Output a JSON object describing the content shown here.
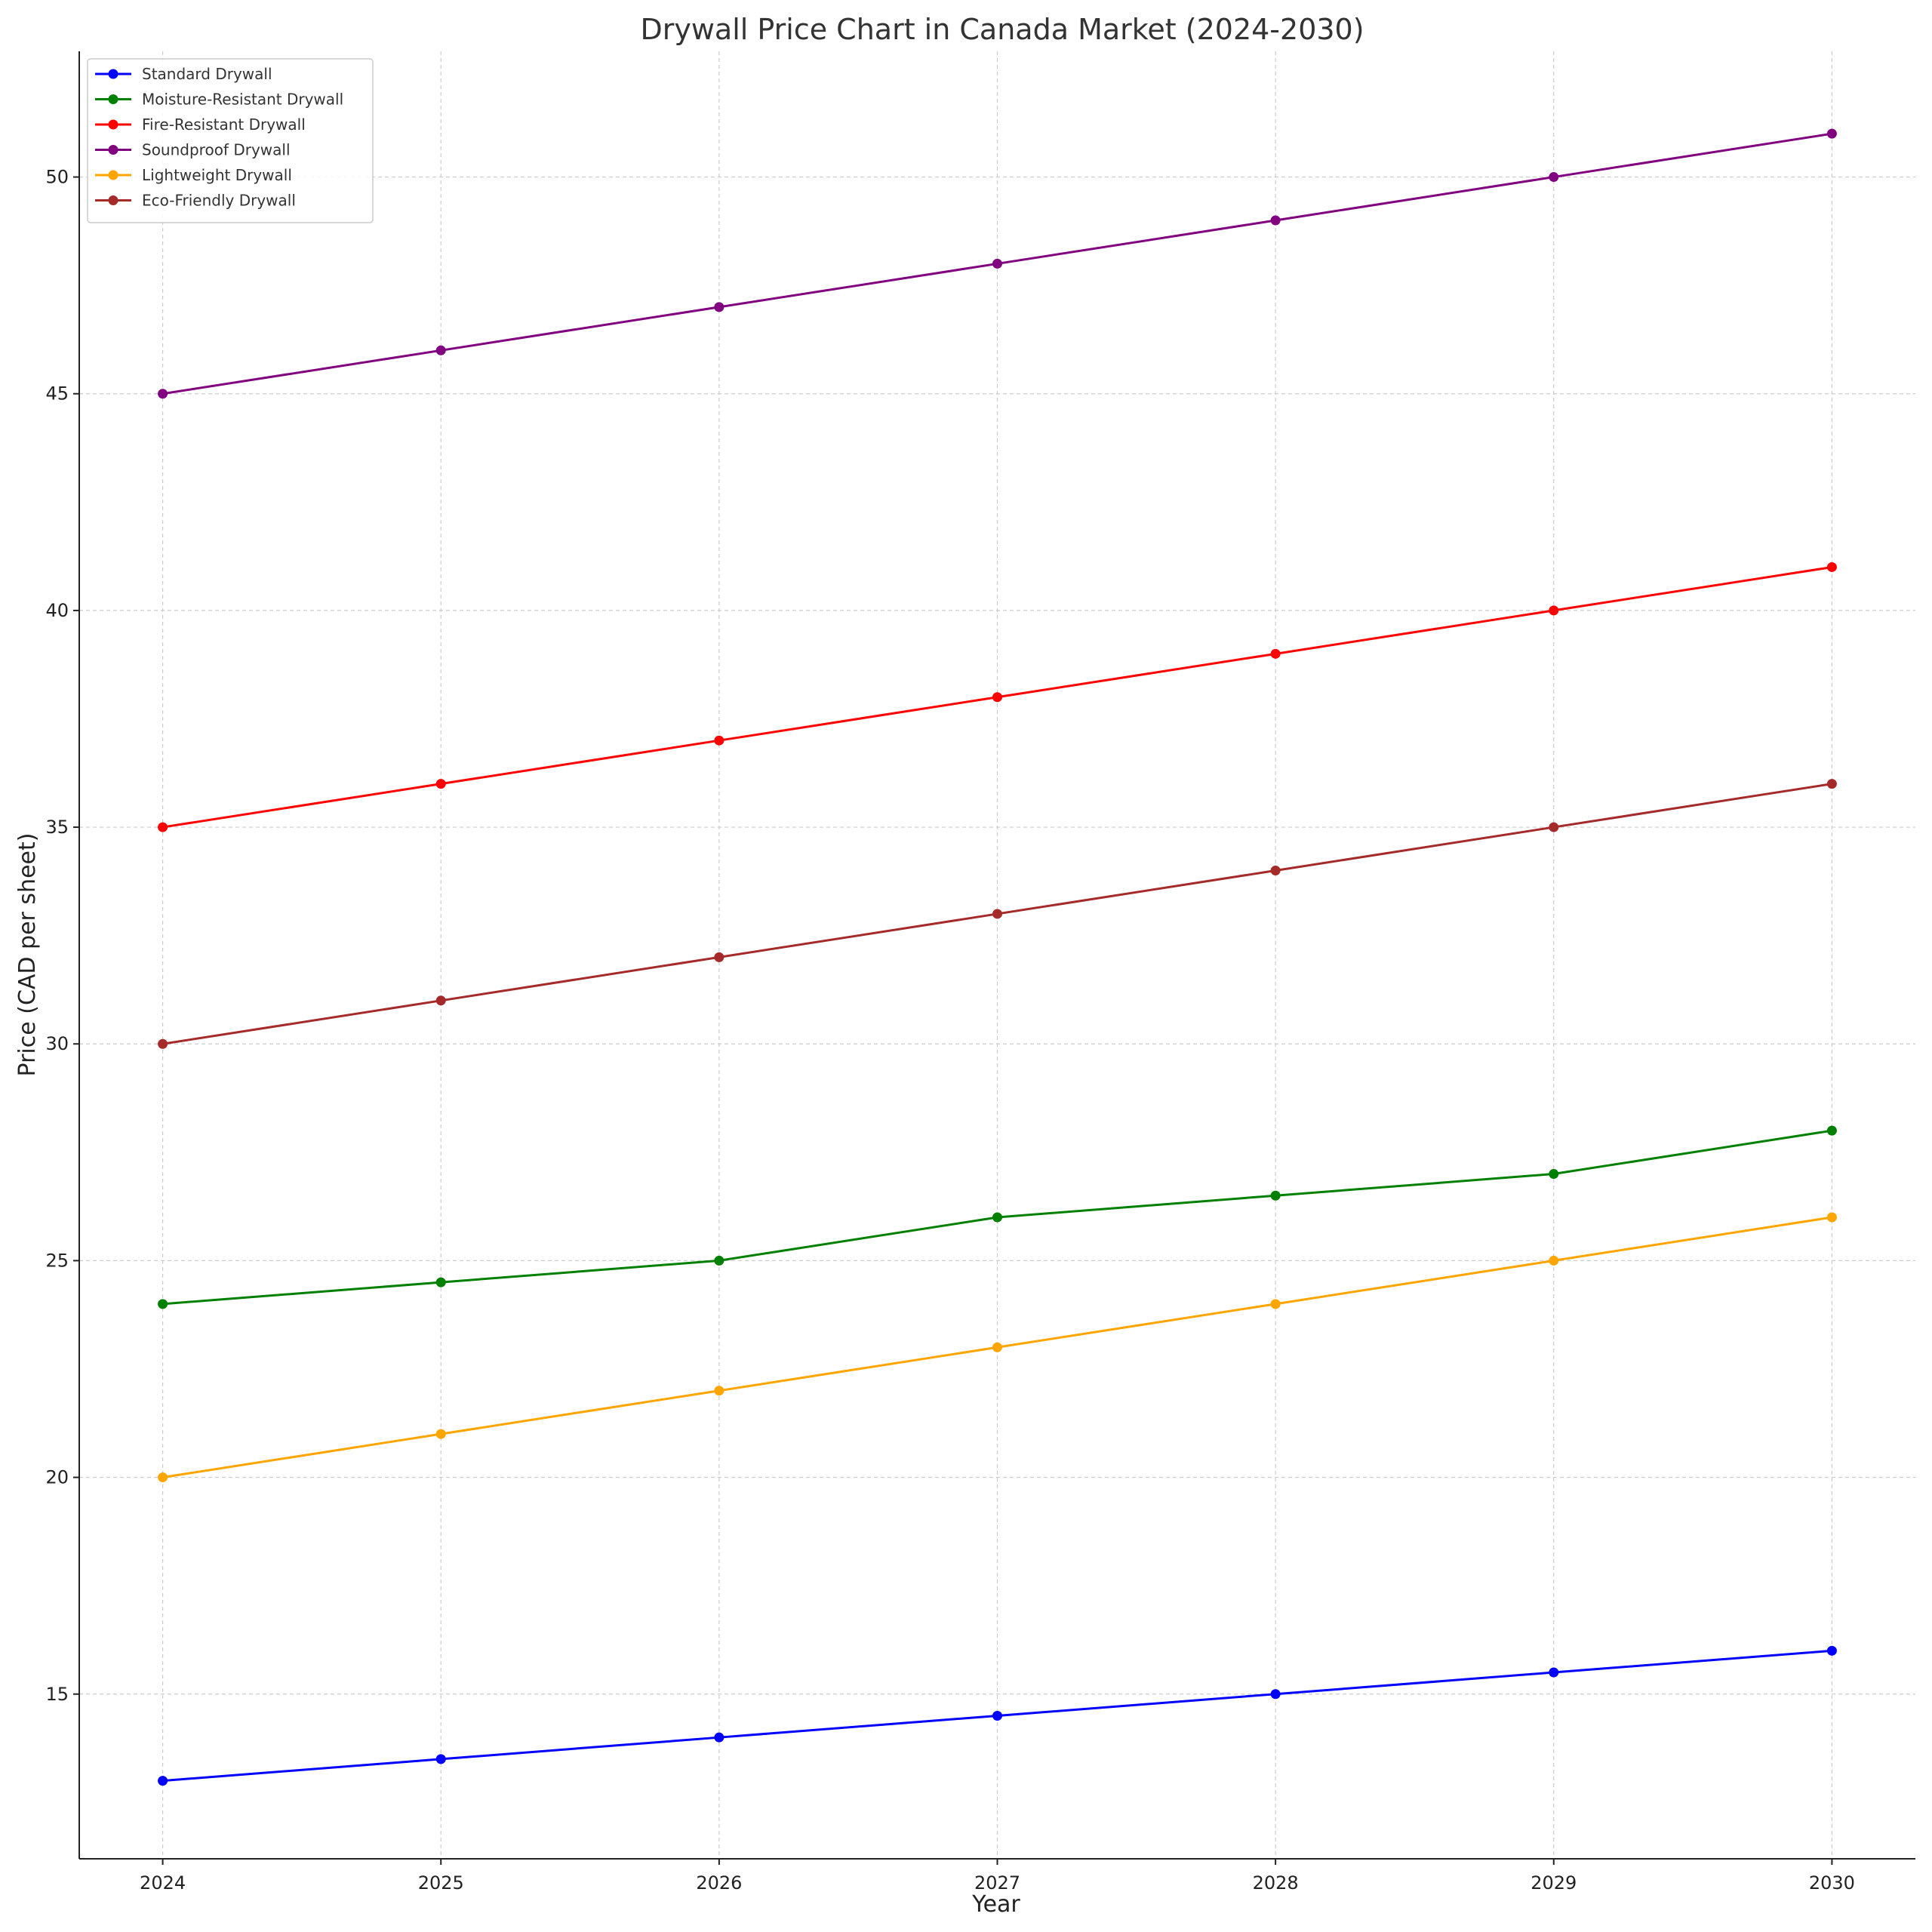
{
  "chart_data": {
    "type": "line",
    "title": "Drywall Price Chart in Canada Market (2024-2030)",
    "xlabel": "Year",
    "ylabel": "Price (CAD per sheet)",
    "x": [
      2024,
      2025,
      2026,
      2027,
      2028,
      2029,
      2030
    ],
    "xlim": [
      2023.7,
      2030.3
    ],
    "ylim": [
      11.2,
      52.9
    ],
    "yticks": [
      15,
      20,
      25,
      30,
      35,
      40,
      45,
      50
    ],
    "grid": true,
    "legend_position": "top-left",
    "series": [
      {
        "name": "Standard Drywall",
        "color": "#0000ff",
        "values": [
          13.0,
          13.5,
          14.0,
          14.5,
          15.0,
          15.5,
          16.0
        ]
      },
      {
        "name": "Moisture-Resistant Drywall",
        "color": "#008000",
        "values": [
          24.0,
          24.5,
          25.0,
          26.0,
          26.5,
          27.0,
          28.0
        ]
      },
      {
        "name": "Fire-Resistant Drywall",
        "color": "#ff0000",
        "values": [
          35,
          36,
          37,
          38,
          39,
          40,
          41
        ]
      },
      {
        "name": "Soundproof Drywall",
        "color": "#800080",
        "values": [
          45,
          46,
          47,
          48,
          49,
          50,
          51
        ]
      },
      {
        "name": "Lightweight Drywall",
        "color": "#ffa500",
        "values": [
          20,
          21,
          22,
          23,
          24,
          25,
          26
        ]
      },
      {
        "name": "Eco-Friendly Drywall",
        "color": "#a52a2a",
        "values": [
          30,
          31,
          32,
          33,
          34,
          35,
          36
        ]
      }
    ]
  }
}
